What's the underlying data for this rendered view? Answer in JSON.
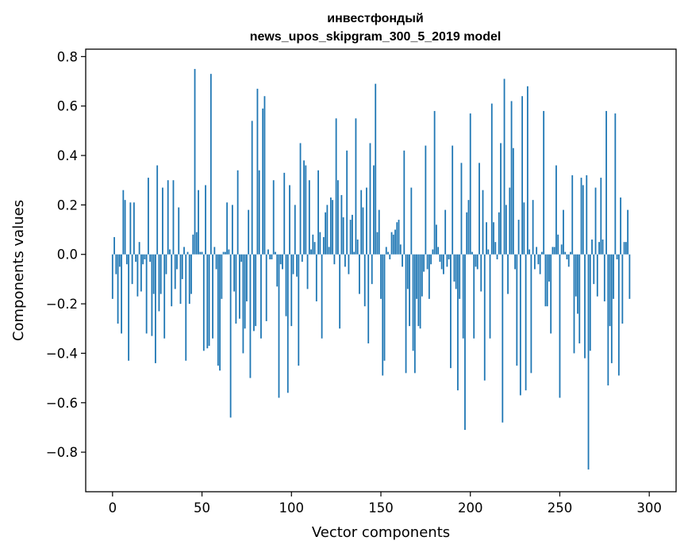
{
  "chart_data": {
    "type": "bar",
    "title_line1": "инвестфондый",
    "title_line2": "news_upos_skipgram_300_5_2019 model",
    "xlabel": "Vector components",
    "ylabel": "Components values",
    "xlim": [
      -15,
      315
    ],
    "ylim": [
      -0.96,
      0.83
    ],
    "xticks": [
      0,
      50,
      100,
      150,
      200,
      250,
      300
    ],
    "xtick_labels": [
      "0",
      "50",
      "100",
      "150",
      "200",
      "250",
      "300"
    ],
    "yticks": [
      -0.8,
      -0.6,
      -0.4,
      -0.2,
      0.0,
      0.2,
      0.4,
      0.6,
      0.8
    ],
    "ytick_labels": [
      "−0.8",
      "−0.6",
      "−0.4",
      "−0.2",
      "0.0",
      "0.2",
      "0.4",
      "0.6",
      "0.8"
    ],
    "bar_color": "#1f77b4",
    "grid": false,
    "values": [
      -0.18,
      0.07,
      -0.08,
      -0.28,
      -0.05,
      -0.32,
      0.26,
      0.22,
      -0.04,
      -0.43,
      0.21,
      -0.12,
      0.21,
      -0.03,
      -0.17,
      0.05,
      -0.15,
      -0.04,
      -0.02,
      -0.32,
      0.31,
      -0.03,
      -0.33,
      -0.16,
      -0.44,
      0.36,
      -0.23,
      -0.16,
      0.27,
      -0.34,
      -0.08,
      0.3,
      0.02,
      -0.21,
      0.3,
      -0.14,
      -0.06,
      0.19,
      -0.2,
      -0.1,
      0.03,
      -0.43,
      0.01,
      -0.2,
      -0.16,
      0.08,
      0.75,
      0.09,
      0.26,
      0.01,
      0.01,
      -0.39,
      0.28,
      -0.38,
      -0.37,
      0.73,
      -0.34,
      0.03,
      -0.06,
      -0.45,
      -0.47,
      -0.18,
      0.01,
      0.01,
      0.21,
      0.02,
      -0.66,
      0.2,
      -0.15,
      -0.28,
      0.34,
      -0.26,
      -0.03,
      -0.4,
      -0.3,
      -0.19,
      0.18,
      -0.5,
      0.54,
      -0.31,
      -0.29,
      0.67,
      0.34,
      -0.34,
      0.59,
      0.64,
      -0.27,
      0.02,
      -0.02,
      -0.02,
      0.3,
      0.01,
      -0.13,
      -0.58,
      -0.04,
      -0.06,
      0.33,
      -0.25,
      -0.56,
      0.28,
      -0.29,
      -0.08,
      0.2,
      -0.09,
      -0.45,
      0.45,
      -0.03,
      0.38,
      0.36,
      -0.14,
      0.3,
      0.02,
      0.08,
      0.05,
      -0.19,
      0.34,
      0.09,
      -0.34,
      0.07,
      0.17,
      0.2,
      0.03,
      0.23,
      0.22,
      -0.04,
      0.55,
      0.3,
      -0.3,
      0.24,
      0.15,
      -0.05,
      0.42,
      -0.08,
      0.14,
      0.16,
      0.01,
      0.55,
      0.06,
      -0.16,
      0.26,
      0.19,
      -0.21,
      0.27,
      -0.36,
      0.45,
      -0.12,
      0.36,
      0.69,
      0.09,
      0.18,
      -0.18,
      -0.49,
      -0.43,
      0.03,
      0.01,
      -0.02,
      0.09,
      0.08,
      0.1,
      0.13,
      0.14,
      0.04,
      -0.05,
      0.42,
      -0.48,
      -0.14,
      -0.29,
      0.27,
      -0.39,
      -0.48,
      -0.18,
      -0.29,
      -0.3,
      -0.17,
      -0.07,
      0.44,
      -0.06,
      -0.18,
      -0.04,
      0.02,
      0.58,
      0.12,
      0.03,
      -0.03,
      -0.06,
      -0.08,
      0.18,
      -0.05,
      -0.02,
      -0.46,
      0.44,
      -0.11,
      -0.14,
      -0.55,
      -0.18,
      0.37,
      -0.34,
      -0.71,
      0.17,
      0.22,
      0.57,
      0.01,
      -0.34,
      -0.05,
      -0.06,
      0.37,
      -0.15,
      0.26,
      -0.51,
      0.13,
      0.02,
      -0.34,
      0.61,
      0.13,
      0.05,
      -0.02,
      0.17,
      0.45,
      -0.68,
      0.71,
      0.2,
      -0.16,
      0.27,
      0.62,
      0.43,
      -0.06,
      -0.45,
      0.14,
      -0.57,
      0.64,
      0.21,
      -0.55,
      0.68,
      0.02,
      -0.48,
      0.22,
      -0.06,
      0.03,
      -0.04,
      -0.08,
      0.01,
      0.58,
      -0.21,
      -0.21,
      -0.11,
      -0.32,
      0.03,
      0.03,
      0.36,
      0.08,
      -0.58,
      0.04,
      0.18,
      0.01,
      -0.02,
      -0.05,
      0.01,
      0.32,
      -0.4,
      -0.17,
      -0.24,
      -0.36,
      0.31,
      0.28,
      -0.42,
      0.32,
      -0.87,
      -0.39,
      0.06,
      -0.12,
      0.27,
      -0.17,
      0.05,
      0.31,
      0.06,
      -0.19,
      0.58,
      -0.53,
      -0.29,
      -0.44,
      -0.18,
      0.57,
      -0.02,
      -0.49,
      0.23,
      -0.28,
      0.05,
      0.05,
      0.18,
      -0.18
    ]
  }
}
